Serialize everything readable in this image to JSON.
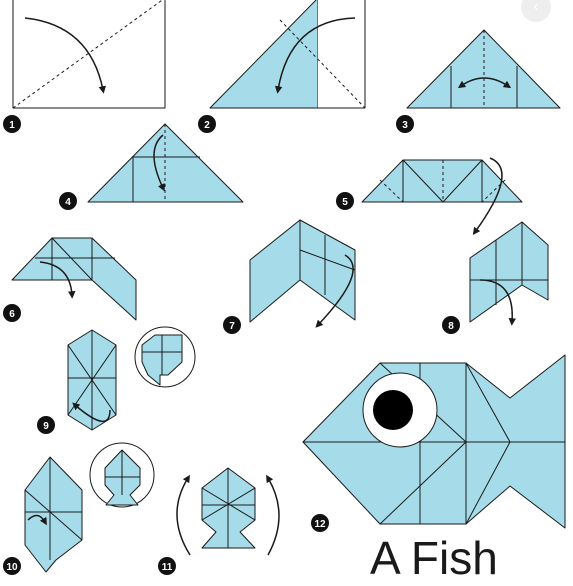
{
  "title": "A Fish",
  "steps": [
    "1",
    "2",
    "3",
    "4",
    "5",
    "6",
    "7",
    "8",
    "9",
    "10",
    "11",
    "12"
  ],
  "nav": {
    "prev_icon": "chevron-left-icon"
  },
  "colors": {
    "paper": "#a6dcea",
    "line": "#1a1a1a",
    "background": "#ffffff"
  }
}
